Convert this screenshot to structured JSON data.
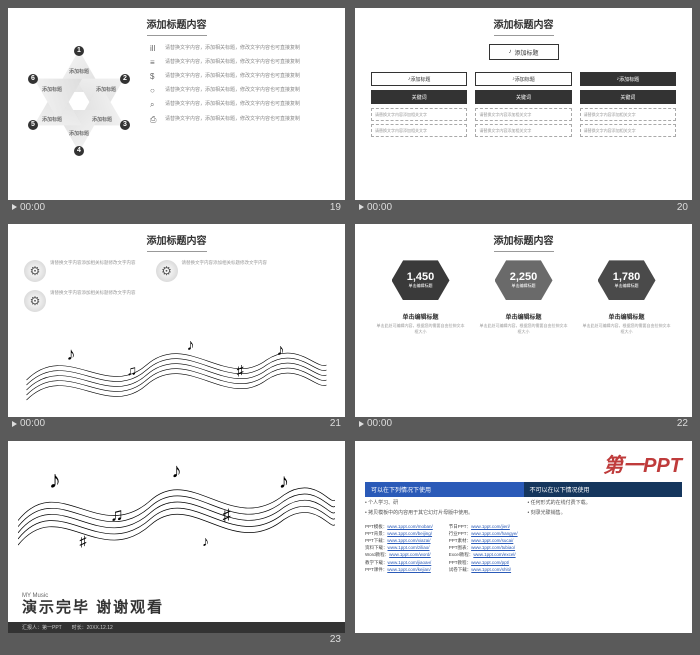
{
  "common": {
    "time": "00:00",
    "slide_title": "添加标题内容",
    "body_placeholder": "请替换文字内容，添加相关标题，修改文字内容"
  },
  "slide19": {
    "page": "19",
    "hex_labels": [
      "添加标题",
      "添加标题",
      "添加标题",
      "添加标题",
      "添加标题",
      "添加标题"
    ],
    "hex_nums": [
      "1",
      "2",
      "3",
      "4",
      "5",
      "6"
    ],
    "icons": [
      "ill",
      "≡",
      "$",
      "○",
      "⌕",
      "⎙"
    ],
    "list_text": "请替换文字内容，添加相关标题，修改文字内容也可直接复制"
  },
  "slide20": {
    "page": "20",
    "root": "添加标题",
    "cols": [
      {
        "head": "添加标题",
        "sub": "关键词",
        "items": [
          "请替换文字内容添加相关文字",
          "请替换文字内容添加相关文字"
        ]
      },
      {
        "head": "添加标题",
        "sub": "关键词",
        "items": [
          "请替换文字内容添加相关文字",
          "请替换文字内容添加相关文字"
        ]
      },
      {
        "head": "添加标题",
        "sub": "关键词",
        "items": [
          "请替换文字内容添加相关文字",
          "请替换文字内容添加相关文字"
        ]
      }
    ]
  },
  "slide21": {
    "page": "21",
    "blocks_text": "请替换文字内容添加相关标题修改文字内容"
  },
  "slide22": {
    "page": "22",
    "stats": [
      {
        "num": "1,450",
        "lbl": "单击编辑标题",
        "color": "#3a3a3a"
      },
      {
        "num": "2,250",
        "lbl": "单击编辑标题",
        "color": "#6a6a6a"
      },
      {
        "num": "1,780",
        "lbl": "单击编辑标题",
        "color": "#4a4a4a"
      }
    ],
    "desc_title": "单击编辑标题",
    "desc_body": "单击此处可编辑内容，根据您的需要自由拉伸文本框大小"
  },
  "slide23": {
    "page": "23",
    "label": "MY Music",
    "main": "演示完毕 谢谢观看",
    "footer": "汇报人：第一PPT　　时长：20XX.12.12"
  },
  "slide24": {
    "logo": "第一PPT",
    "intro1": "可以在下列情况下使用",
    "intro2": "不可以在以下情况使用",
    "bar1_color": "#2a5ab8",
    "bar2_color": "#15365d",
    "b1_items": [
      "个人学习、研",
      "拷贝模板中的内容用于其它幻灯片母版中使用。"
    ],
    "b2_items": [
      "任何形式的在线付费下载。",
      "刻录光碟销售。"
    ],
    "link_labels": [
      "PPT模板：",
      "PPT背景：",
      "PPT下载：",
      "资料下载：",
      "Word教程：",
      "教学下载：",
      "PPT课件：",
      "节日PPT：",
      "行业PPT：",
      "PPT素材：",
      "PPT图表：",
      "Excel教程：",
      "PPT教程：",
      "试卷下载："
    ],
    "link_urls": [
      "www.1ppt.com/moban/",
      "www.1ppt.com/beijing/",
      "www.1ppt.com/xiazai/",
      "www.1ppt.com/ziliao/",
      "www.1ppt.com/word/",
      "www.1ppt.com/jiaoан/",
      "www.1ppt.com/kejian/",
      "www.1ppt.com/jieri/",
      "www.1ppt.com/hangye/",
      "www.1ppt.com/sucai/",
      "www.1ppt.com/tubiao/",
      "www.1ppt.com/excel/",
      "www.1ppt.com/ppt/",
      "www.1ppt.com/shiti/"
    ]
  }
}
